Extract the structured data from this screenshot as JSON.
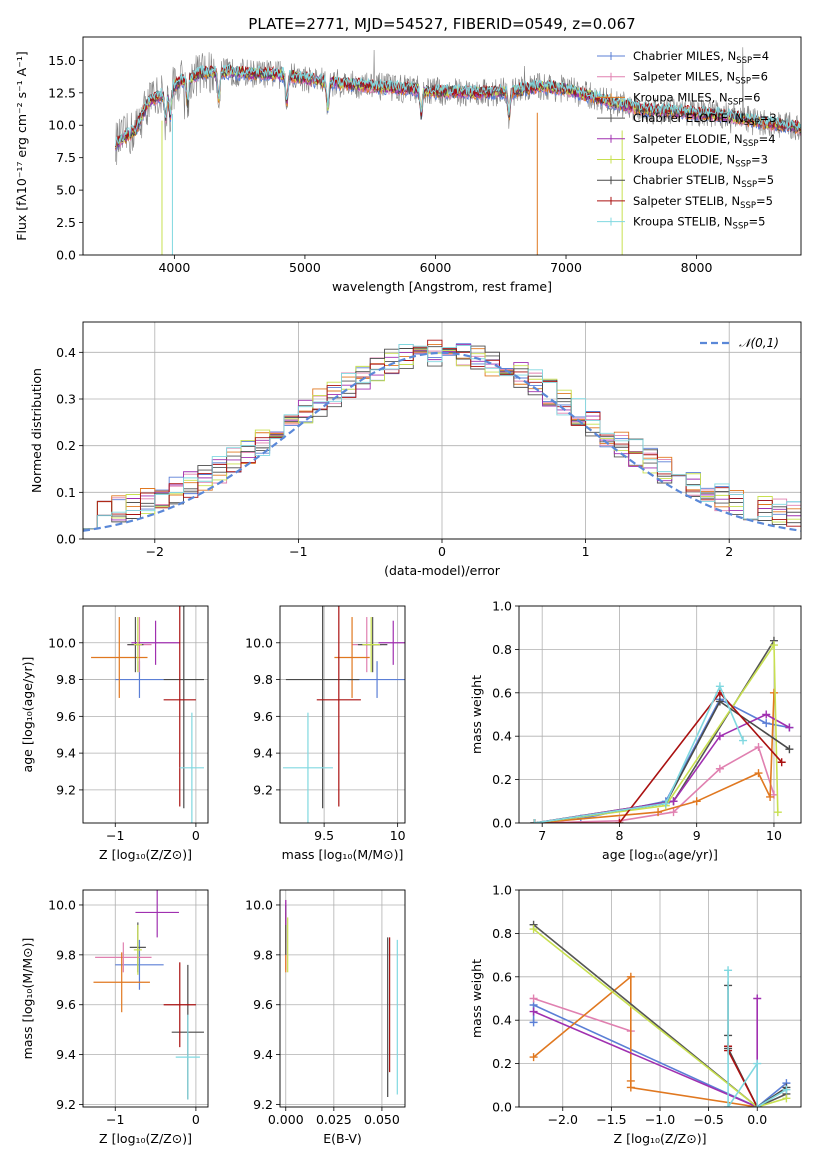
{
  "chart_data": [
    {
      "type": "line",
      "title": "PLATE=2771, MJD=54527, FIBERID=0549, z=0.067",
      "xlabel": "wavelength [Angstrom, rest frame]",
      "ylabel": "Flux [fλ10⁻¹⁷ erg cm⁻² s⁻¹ A⁻¹]",
      "xlim": [
        3300,
        8800
      ],
      "ylim": [
        0,
        16.8
      ],
      "xticks": [
        4000,
        5000,
        6000,
        7000,
        8000
      ],
      "yticks": [
        0.0,
        2.5,
        5.0,
        7.5,
        10.0,
        12.5,
        15.0
      ],
      "legend_position": "top-right",
      "legend": [
        "Chabrier MILES, N_SSP=4",
        "Salpeter MILES, N_SSP=6",
        "Kroupa MILES, N_SSP=6",
        "Chabrier ELODIE, N_SSP=3",
        "Salpeter ELODIE, N_SSP=4",
        "Kroupa ELODIE, N_SSP=3",
        "Chabrier STELIB, N_SSP=5",
        "Salpeter STELIB, N_SSP=5",
        "Kroupa STELIB, N_SSP=5"
      ],
      "colors": [
        "#5b7fd6",
        "#e080b0",
        "#e07820",
        "#555555",
        "#a030b0",
        "#c8e050",
        "#4a4a4a",
        "#aa1111",
        "#80d8e0"
      ],
      "data_color": "#808080",
      "continuum": {
        "x": [
          3550,
          3700,
          3800,
          3950,
          4050,
          4200,
          4400,
          4600,
          4800,
          5000,
          5200,
          5500,
          5800,
          6000,
          6300,
          6600,
          6800,
          7000,
          7300,
          7600,
          7900,
          8200,
          8500,
          8800
        ],
        "y": [
          8.6,
          9.6,
          11.8,
          12.6,
          13.4,
          14.0,
          14.1,
          14.0,
          13.9,
          13.6,
          13.3,
          13.0,
          12.8,
          12.6,
          12.5,
          12.6,
          13.0,
          12.8,
          11.9,
          11.2,
          11.0,
          10.8,
          10.2,
          9.8
        ]
      }
    },
    {
      "type": "bar",
      "xlabel": "(data-model)/error",
      "ylabel": "Normed distribution",
      "xlim": [
        -2.5,
        2.5
      ],
      "ylim": [
        0,
        0.465
      ],
      "xticks": [
        -2,
        -1,
        0,
        1,
        2
      ],
      "yticks": [
        0.0,
        0.1,
        0.2,
        0.3,
        0.4
      ],
      "legend": [
        "𝒩(0,1)"
      ],
      "legend_position": "top-right",
      "gaussian_color": "#5a88d8",
      "bin_width": 0.1,
      "bin_start": -2.5
    },
    {
      "type": "scatter",
      "xlabel": "Z [log₁₀(Z/Z⊙)]",
      "ylabel": "age  [log₁₀(age/yr)]",
      "xlim": [
        -1.4,
        0.15
      ],
      "ylim": [
        9.02,
        10.2
      ],
      "xticks": [
        -1,
        0
      ],
      "yticks": [
        9.2,
        9.4,
        9.6,
        9.8,
        10.0
      ],
      "points": [
        {
          "x": -0.7,
          "y": 9.8,
          "xerr": 0.3,
          "yerr": 0.1
        },
        {
          "x": -0.7,
          "y": 9.99,
          "xerr": 0.15,
          "yerr": 0.15
        },
        {
          "x": -0.95,
          "y": 9.92,
          "xerr": 0.35,
          "yerr": 0.22
        },
        {
          "x": -0.75,
          "y": 9.99,
          "xerr": 0.1,
          "yerr": 0.15
        },
        {
          "x": -0.5,
          "y": 10.0,
          "xerr": 0.3,
          "yerr": 0.12
        },
        {
          "x": -0.72,
          "y": 9.99,
          "xerr": 0.05,
          "yerr": 0.15
        },
        {
          "x": -0.15,
          "y": 9.8,
          "xerr": 0.25,
          "yerr": 0.7
        },
        {
          "x": -0.2,
          "y": 9.69,
          "xerr": 0.2,
          "yerr": 0.58
        },
        {
          "x": -0.05,
          "y": 9.32,
          "xerr": 0.15,
          "yerr": 0.3
        }
      ]
    },
    {
      "type": "scatter",
      "xlabel": "mass [log₁₀(M/M⊙)]",
      "xlim": [
        9.2,
        10.05
      ],
      "ylim": [
        9.02,
        10.2
      ],
      "xticks": [
        9.5,
        10.0
      ],
      "yticks": [
        9.2,
        9.4,
        9.6,
        9.8,
        10.0
      ],
      "points": [
        {
          "x": 9.86,
          "y": 9.8,
          "xerr": 0.2,
          "yerr": 0.1
        },
        {
          "x": 9.79,
          "y": 9.99,
          "xerr": 0.1,
          "yerr": 0.15
        },
        {
          "x": 9.69,
          "y": 9.92,
          "xerr": 0.12,
          "yerr": 0.22
        },
        {
          "x": 9.83,
          "y": 9.99,
          "xerr": 0.1,
          "yerr": 0.15
        },
        {
          "x": 9.97,
          "y": 10.0,
          "xerr": 0.1,
          "yerr": 0.12
        },
        {
          "x": 9.82,
          "y": 9.99,
          "xerr": 0.06,
          "yerr": 0.15
        },
        {
          "x": 9.49,
          "y": 9.8,
          "xerr": 0.25,
          "yerr": 0.7
        },
        {
          "x": 9.6,
          "y": 9.69,
          "xerr": 0.15,
          "yerr": 0.58
        },
        {
          "x": 9.39,
          "y": 9.32,
          "xerr": 0.17,
          "yerr": 0.3
        }
      ]
    },
    {
      "type": "line",
      "xlabel": "age  [log₁₀(age/yr)]",
      "ylabel": "mass weight",
      "xlim": [
        6.7,
        10.35
      ],
      "ylim": [
        0,
        1.0
      ],
      "xticks": [
        7,
        8,
        9,
        10
      ],
      "yticks": [
        0.0,
        0.2,
        0.4,
        0.6,
        0.8,
        1.0
      ],
      "series": [
        {
          "x": [
            6.9,
            7.5,
            8.6,
            9.3,
            9.9,
            10.2
          ],
          "y": [
            0.0,
            0.02,
            0.1,
            0.57,
            0.46,
            0.44
          ]
        },
        {
          "x": [
            6.9,
            8.0,
            8.7,
            9.3,
            9.8,
            10.0
          ],
          "y": [
            0.0,
            0.01,
            0.05,
            0.25,
            0.35,
            0.13
          ]
        },
        {
          "x": [
            6.9,
            8.5,
            9.0,
            9.8,
            9.95,
            10.0
          ],
          "y": [
            0.0,
            0.05,
            0.1,
            0.23,
            0.12,
            0.6
          ]
        },
        {
          "x": [
            6.9,
            8.7,
            10.0
          ],
          "y": [
            0.0,
            0.1,
            0.84
          ]
        },
        {
          "x": [
            6.9,
            8.7,
            9.3,
            9.9,
            10.2
          ],
          "y": [
            0.0,
            0.1,
            0.4,
            0.5,
            0.44
          ]
        },
        {
          "x": [
            6.9,
            8.6,
            10.0,
            10.05
          ],
          "y": [
            0.0,
            0.08,
            0.82,
            0.05
          ]
        },
        {
          "x": [
            6.9,
            8.6,
            9.3,
            10.2
          ],
          "y": [
            0.0,
            0.09,
            0.56,
            0.34
          ]
        },
        {
          "x": [
            6.9,
            8.0,
            9.3,
            10.1
          ],
          "y": [
            0.0,
            0.0,
            0.6,
            0.28
          ]
        },
        {
          "x": [
            6.9,
            8.6,
            9.3,
            9.6
          ],
          "y": [
            0.0,
            0.09,
            0.63,
            0.38
          ]
        }
      ]
    },
    {
      "type": "scatter",
      "xlabel": "Z [log₁₀(Z/Z⊙)]",
      "ylabel": "mass [log₁₀(M/M⊙)]",
      "xlim": [
        -1.4,
        0.15
      ],
      "ylim": [
        9.19,
        10.06
      ],
      "xticks": [
        -1,
        0
      ],
      "yticks": [
        9.2,
        9.4,
        9.6,
        9.8,
        10.0
      ],
      "points": [
        {
          "x": -0.7,
          "y": 9.76,
          "xerr": 0.3,
          "yerr": 0.1
        },
        {
          "x": -0.9,
          "y": 9.79,
          "xerr": 0.35,
          "yerr": 0.06
        },
        {
          "x": -0.92,
          "y": 9.69,
          "xerr": 0.35,
          "yerr": 0.12
        },
        {
          "x": -0.72,
          "y": 9.83,
          "xerr": 0.1,
          "yerr": 0.1
        },
        {
          "x": -0.48,
          "y": 9.97,
          "xerr": 0.27,
          "yerr": 0.1
        },
        {
          "x": -0.72,
          "y": 9.82,
          "xerr": 0.05,
          "yerr": 0.1
        },
        {
          "x": -0.1,
          "y": 9.49,
          "xerr": 0.2,
          "yerr": 0.27
        },
        {
          "x": -0.2,
          "y": 9.6,
          "xerr": 0.2,
          "yerr": 0.17
        },
        {
          "x": -0.1,
          "y": 9.39,
          "xerr": 0.15,
          "yerr": 0.17
        }
      ]
    },
    {
      "type": "scatter",
      "xlabel": "E(B-V)",
      "xlim": [
        -0.003,
        0.062
      ],
      "ylim": [
        9.19,
        10.06
      ],
      "xticks": [
        0.0,
        0.025,
        0.05
      ],
      "xticklabels": [
        "0.000",
        "0.025",
        "0.050"
      ],
      "yticks": [
        9.2,
        9.4,
        9.6,
        9.8,
        10.0
      ],
      "points": [
        {
          "x": 0.0,
          "y": 9.93,
          "xerr": 0,
          "yerr": 0.08
        },
        {
          "x": 0.0,
          "y": 9.88,
          "xerr": 0,
          "yerr": 0.14
        },
        {
          "x": 0.0,
          "y": 9.85,
          "xerr": 0,
          "yerr": 0.12
        },
        {
          "x": 0.0,
          "y": 9.9,
          "xerr": 0,
          "yerr": 0.1
        },
        {
          "x": 0.0,
          "y": 9.97,
          "xerr": 0,
          "yerr": 0.05
        },
        {
          "x": 0.001,
          "y": 9.84,
          "xerr": 0,
          "yerr": 0.11
        },
        {
          "x": 0.053,
          "y": 9.55,
          "xerr": 0,
          "yerr": 0.32
        },
        {
          "x": 0.054,
          "y": 9.6,
          "xerr": 0,
          "yerr": 0.27
        },
        {
          "x": 0.058,
          "y": 9.55,
          "xerr": 0,
          "yerr": 0.31
        }
      ]
    },
    {
      "type": "line",
      "xlabel": "Z [log₁₀(Z/Z⊙)]",
      "ylabel": "mass weight",
      "xlim": [
        -2.45,
        0.45
      ],
      "ylim": [
        0,
        1.0
      ],
      "xticks": [
        -2.0,
        -1.5,
        -1.0,
        -0.5,
        0.0
      ],
      "yticks": [
        0.0,
        0.2,
        0.4,
        0.6,
        0.8,
        1.0
      ],
      "series": [
        {
          "x": [
            -2.3,
            -2.3,
            0.0,
            0.3
          ],
          "y": [
            0.39,
            0.47,
            0.0,
            0.11
          ]
        },
        {
          "x": [
            -2.3,
            -1.3
          ],
          "y": [
            0.5,
            0.35
          ]
        },
        {
          "x": [
            -2.3,
            -1.3,
            -1.3,
            -1.3,
            0.0
          ],
          "y": [
            0.23,
            0.6,
            0.12,
            0.09,
            0.0
          ]
        },
        {
          "x": [
            -2.3,
            0.0,
            0.3
          ],
          "y": [
            0.84,
            0.0,
            0.06
          ]
        },
        {
          "x": [
            -2.3,
            0.0,
            0.0
          ],
          "y": [
            0.44,
            0.0,
            0.5
          ]
        },
        {
          "x": [
            -2.3,
            0.0,
            0.3
          ],
          "y": [
            0.82,
            0.0,
            0.04
          ]
        },
        {
          "x": [
            -0.3,
            -0.3,
            -0.3,
            0.0,
            0.3
          ],
          "y": [
            0.56,
            0.33,
            0.27,
            0.0,
            0.09
          ]
        },
        {
          "x": [
            -0.3,
            -0.3,
            0.0
          ],
          "y": [
            0.28,
            0.26,
            0.0
          ]
        },
        {
          "x": [
            -0.3,
            -0.3,
            0.0,
            0.0,
            0.3
          ],
          "y": [
            0.63,
            0.0,
            0.2,
            0.0,
            0.08
          ]
        }
      ]
    }
  ]
}
